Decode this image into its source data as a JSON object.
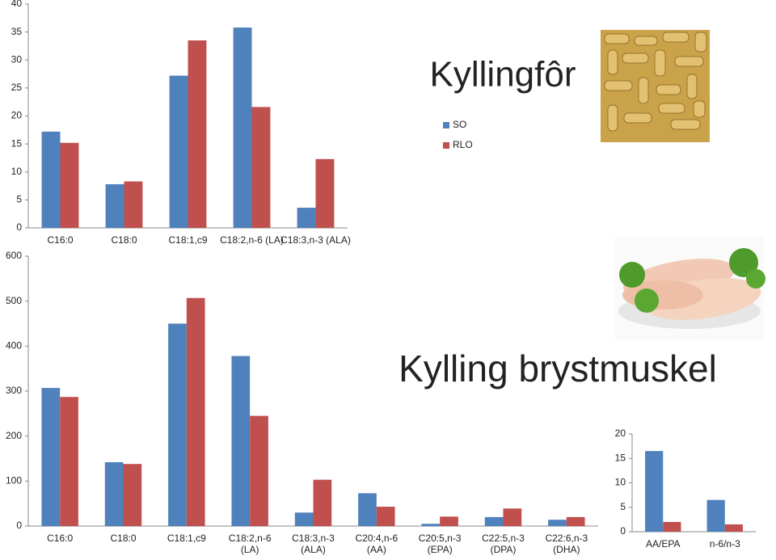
{
  "chart_data": [
    {
      "type": "bar",
      "title": "Kyllingfôr",
      "categories": [
        "C16:0",
        "C18:0",
        "C18:1,c9",
        "C18:2,n-6 (LA)",
        "C18:3,n-3 (ALA)"
      ],
      "series": [
        {
          "name": "SO",
          "color": "#4f81bd",
          "values": [
            17.2,
            7.8,
            27.2,
            35.8,
            3.6
          ]
        },
        {
          "name": "RLO",
          "color": "#c0504d",
          "values": [
            15.2,
            8.3,
            33.5,
            21.6,
            12.3
          ]
        }
      ],
      "ylim": [
        0,
        40
      ],
      "yticks": [
        0,
        5,
        10,
        15,
        20,
        25,
        30,
        35,
        40
      ],
      "legend": "right"
    },
    {
      "type": "bar",
      "title": "Kylling brystmuskel",
      "categories": [
        "C16:0",
        "C18:0",
        "C18:1,c9",
        "C18:2,n-6 (LA)",
        "C18:3,n-3 (ALA)",
        "C20:4,n-6 (AA)",
        "C20:5,n-3 (EPA)",
        "C22:5,n-3 (DPA)",
        "C22:6,n-3 (DHA)"
      ],
      "series": [
        {
          "color": "#4f81bd",
          "values": [
            307,
            142,
            450,
            378,
            30,
            73,
            5,
            20,
            14
          ]
        },
        {
          "color": "#c0504d",
          "values": [
            287,
            138,
            507,
            245,
            103,
            43,
            21,
            39,
            20
          ]
        }
      ],
      "ylim": [
        0,
        600
      ],
      "yticks": [
        0,
        100,
        200,
        300,
        400,
        500,
        600
      ]
    },
    {
      "type": "bar",
      "categories": [
        "AA/EPA",
        "n-6/n-3"
      ],
      "series": [
        {
          "color": "#4f81bd",
          "values": [
            16.5,
            6.5
          ]
        },
        {
          "color": "#c0504d",
          "values": [
            2.0,
            1.5
          ]
        }
      ],
      "ylim": [
        0,
        20
      ],
      "yticks": [
        0,
        5,
        10,
        15,
        20
      ]
    }
  ]
}
